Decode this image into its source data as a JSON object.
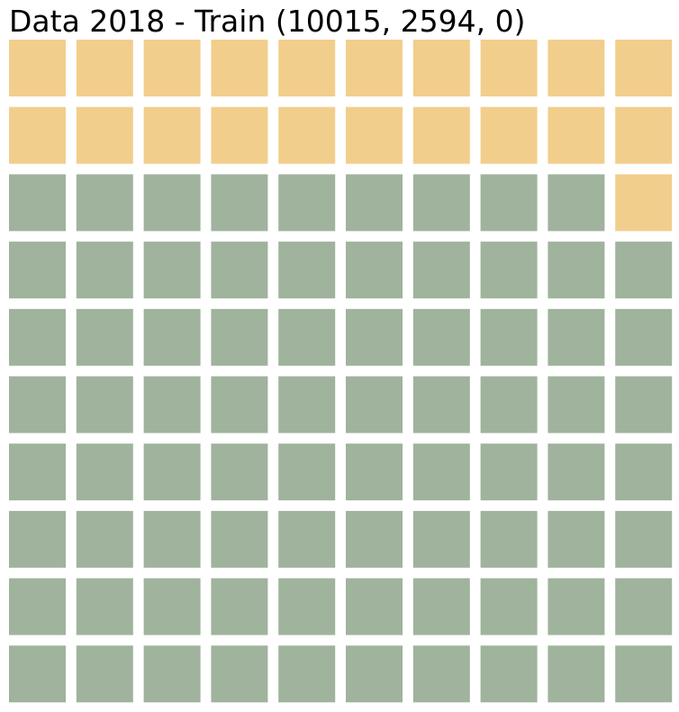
{
  "chart_data": {
    "type": "waffle",
    "title": "Data 2018 - Train (10015, 2594, 0)",
    "rows": 10,
    "columns": 10,
    "fill_order": "row-major from bottom-left",
    "total_cells": 100,
    "counts": [
      10015,
      2594,
      0
    ],
    "series": [
      {
        "value": 10015,
        "cells": 79,
        "color": "#a0b39d"
      },
      {
        "value": 2594,
        "cells": 21,
        "color": "#f2ce8c"
      },
      {
        "value": 0,
        "cells": 0,
        "color": "#d9d9d9"
      }
    ]
  }
}
